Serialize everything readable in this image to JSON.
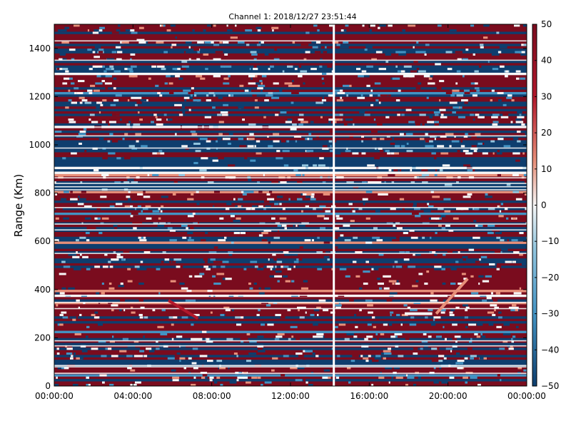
{
  "chart_data": {
    "type": "heatmap",
    "title": "Channel 1: 2018/12/27 23:51:44",
    "xlabel": "",
    "ylabel": "Range (Km)",
    "x_ticks": [
      "00:00:00",
      "04:00:00",
      "08:00:00",
      "12:00:00",
      "16:00:00",
      "20:00:00",
      "00:00:00"
    ],
    "x_range_hours": [
      0,
      24
    ],
    "y_ticks": [
      0,
      200,
      400,
      600,
      800,
      1000,
      1200,
      1400
    ],
    "ylim": [
      0,
      1500
    ],
    "colorbar": {
      "ticks": [
        50,
        40,
        30,
        20,
        10,
        0,
        -10,
        -20,
        -30,
        -40,
        -50
      ],
      "range": [
        -50,
        50
      ],
      "colormap": "RdBu_r"
    },
    "colors": {
      "dark_red": "#7a0c1e",
      "mid_red": "#b2182b",
      "light_red": "#e8907a",
      "white": "#f7f7f7",
      "light_blue": "#92c5de",
      "mid_blue": "#4393c3",
      "dark_blue": "#0e3e6e"
    },
    "missing_data_gap_hours": 14.2,
    "echo_features": [
      {
        "start_hours": 5.8,
        "end_hours": 7.3,
        "range_start_km": 355,
        "range_end_km": 280,
        "value": 20
      },
      {
        "start_hours": 19.4,
        "end_hours": 21.0,
        "range_start_km": 300,
        "range_end_km": 445,
        "value": 15
      },
      {
        "start_hours": 17.8,
        "end_hours": 19.2,
        "range_start_km": 300,
        "range_end_km": 300,
        "value": 0
      }
    ]
  }
}
